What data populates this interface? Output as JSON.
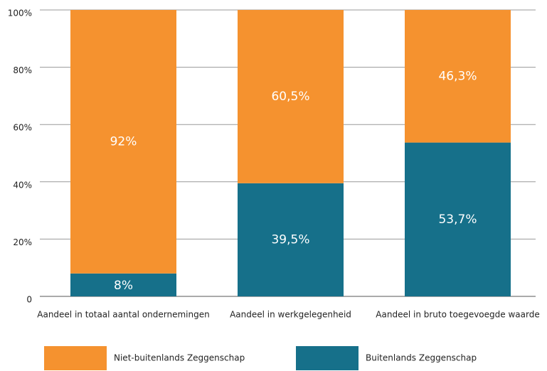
{
  "chart_data": {
    "type": "stacked_bar",
    "categories": [
      "Aandeel in totaal aantal ondernemingen",
      "Aandeel in werkgelegenheid",
      "Aandeel in bruto toegevoegde waarde"
    ],
    "series": [
      {
        "name": "Niet-buitenlands Zeggenschap",
        "color": "#f5922f",
        "values": [
          92,
          60.5,
          46.3
        ],
        "value_labels": [
          "92%",
          "60,5%",
          "46,3%"
        ]
      },
      {
        "name": "Buitenlands Zeggenschap",
        "color": "#16708a",
        "values": [
          8,
          39.5,
          53.7
        ],
        "value_labels": [
          "8%",
          "39,5%",
          "53,7%"
        ]
      }
    ],
    "ylim": [
      0,
      100
    ],
    "yticks": [
      0,
      {
        "value": 20,
        "label": "20%"
      },
      {
        "value": 40,
        "label": "40%"
      },
      {
        "value": 60,
        "label": "60%"
      },
      {
        "value": 80,
        "label": "80%"
      },
      {
        "value": 100,
        "label": "100%"
      }
    ],
    "grid": true
  }
}
